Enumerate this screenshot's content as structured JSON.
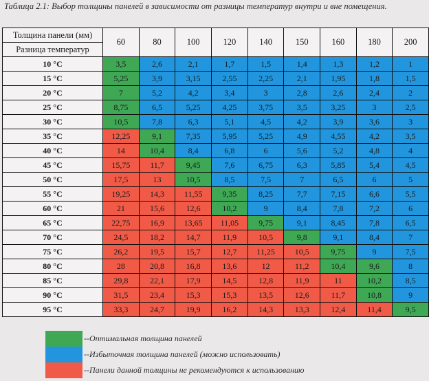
{
  "caption": "Таблица 2.1: Выбор толщины панелей в зависимости от разницы температур внутри и вне помещения.",
  "header": {
    "thickness_label": "Толщина панели (мм)",
    "diff_label": "Разница температур",
    "columns": [
      "60",
      "80",
      "100",
      "120",
      "140",
      "150",
      "160",
      "180",
      "200"
    ]
  },
  "colors": {
    "green": "#3fa855",
    "blue": "#2196de",
    "red": "#f05a47"
  },
  "rows": [
    {
      "label": "10 °C",
      "values": [
        "3,5",
        "2,6",
        "2,1",
        "1,7",
        "1,5",
        "1,4",
        "1,3",
        "1,2",
        "1"
      ],
      "colors": [
        "g",
        "b",
        "b",
        "b",
        "b",
        "b",
        "b",
        "b",
        "b"
      ]
    },
    {
      "label": "15 °C",
      "values": [
        "5,25",
        "3,9",
        "3,15",
        "2,55",
        "2,25",
        "2,1",
        "1,95",
        "1,8",
        "1,5"
      ],
      "colors": [
        "g",
        "b",
        "b",
        "b",
        "b",
        "b",
        "b",
        "b",
        "b"
      ]
    },
    {
      "label": "20 °C",
      "values": [
        "7",
        "5,2",
        "4,2",
        "3,4",
        "3",
        "2,8",
        "2,6",
        "2,4",
        "2"
      ],
      "colors": [
        "g",
        "b",
        "b",
        "b",
        "b",
        "b",
        "b",
        "b",
        "b"
      ]
    },
    {
      "label": "25 °C",
      "values": [
        "8,75",
        "6,5",
        "5,25",
        "4,25",
        "3,75",
        "3,5",
        "3,25",
        "3",
        "2,5"
      ],
      "colors": [
        "g",
        "b",
        "b",
        "b",
        "b",
        "b",
        "b",
        "b",
        "b"
      ]
    },
    {
      "label": "30 °C",
      "values": [
        "10,5",
        "7,8",
        "6,3",
        "5,1",
        "4,5",
        "4,2",
        "3,9",
        "3,6",
        "3"
      ],
      "colors": [
        "g",
        "b",
        "b",
        "b",
        "b",
        "b",
        "b",
        "b",
        "b"
      ]
    },
    {
      "label": "35 °C",
      "values": [
        "12,25",
        "9,1",
        "7,35",
        "5,95",
        "5,25",
        "4,9",
        "4,55",
        "4,2",
        "3,5"
      ],
      "colors": [
        "r",
        "g",
        "b",
        "b",
        "b",
        "b",
        "b",
        "b",
        "b"
      ]
    },
    {
      "label": "40 °C",
      "values": [
        "14",
        "10,4",
        "8,4",
        "6,8",
        "6",
        "5,6",
        "5,2",
        "4,8",
        "4"
      ],
      "colors": [
        "r",
        "g",
        "b",
        "b",
        "b",
        "b",
        "b",
        "b",
        "b"
      ]
    },
    {
      "label": "45 °C",
      "values": [
        "15,75",
        "11,7",
        "9,45",
        "7,6",
        "6,75",
        "6,3",
        "5,85",
        "5,4",
        "4,5"
      ],
      "colors": [
        "r",
        "r",
        "g",
        "b",
        "b",
        "b",
        "b",
        "b",
        "b"
      ]
    },
    {
      "label": "50 °C",
      "values": [
        "17,5",
        "13",
        "10,5",
        "8,5",
        "7,5",
        "7",
        "6,5",
        "6",
        "5"
      ],
      "colors": [
        "r",
        "r",
        "g",
        "b",
        "b",
        "b",
        "b",
        "b",
        "b"
      ]
    },
    {
      "label": "55 °C",
      "values": [
        "19,25",
        "14,3",
        "11,55",
        "9,35",
        "8,25",
        "7,7",
        "7,15",
        "6,6",
        "5,5"
      ],
      "colors": [
        "r",
        "r",
        "r",
        "g",
        "b",
        "b",
        "b",
        "b",
        "b"
      ]
    },
    {
      "label": "60 °C",
      "values": [
        "21",
        "15,6",
        "12,6",
        "10,2",
        "9",
        "8,4",
        "7,8",
        "7,2",
        "6"
      ],
      "colors": [
        "r",
        "r",
        "r",
        "g",
        "b",
        "b",
        "b",
        "b",
        "b"
      ]
    },
    {
      "label": "65 °C",
      "values": [
        "22,75",
        "16,9",
        "13,65",
        "11,05",
        "9,75",
        "9,1",
        "8,45",
        "7,8",
        "6,5"
      ],
      "colors": [
        "r",
        "r",
        "r",
        "r",
        "g",
        "b",
        "b",
        "b",
        "b"
      ]
    },
    {
      "label": "70 °C",
      "values": [
        "24,5",
        "18,2",
        "14,7",
        "11,9",
        "10,5",
        "9,8",
        "9,1",
        "8,4",
        "7"
      ],
      "colors": [
        "r",
        "r",
        "r",
        "r",
        "r",
        "g",
        "b",
        "b",
        "b"
      ]
    },
    {
      "label": "75 °C",
      "values": [
        "26,2",
        "19,5",
        "15,7",
        "12,7",
        "11,25",
        "10,5",
        "9,75",
        "9",
        "7,5"
      ],
      "colors": [
        "r",
        "r",
        "r",
        "r",
        "r",
        "r",
        "g",
        "b",
        "b"
      ]
    },
    {
      "label": "80 °C",
      "values": [
        "28",
        "20,8",
        "16,8",
        "13,6",
        "12",
        "11,2",
        "10,4",
        "9,6",
        "8"
      ],
      "colors": [
        "r",
        "r",
        "r",
        "r",
        "r",
        "r",
        "g",
        "g",
        "b"
      ]
    },
    {
      "label": "85 °C",
      "values": [
        "29,8",
        "22,1",
        "17,9",
        "14,5",
        "12,8",
        "11,9",
        "11",
        "10,2",
        "8,5"
      ],
      "colors": [
        "r",
        "r",
        "r",
        "r",
        "r",
        "r",
        "r",
        "g",
        "b"
      ]
    },
    {
      "label": "90 °C",
      "values": [
        "31,5",
        "23,4",
        "15,3",
        "15,3",
        "13,5",
        "12,6",
        "11,7",
        "10,8",
        "9"
      ],
      "colors": [
        "r",
        "r",
        "r",
        "r",
        "r",
        "r",
        "r",
        "g",
        "b"
      ]
    },
    {
      "label": "95 °C",
      "values": [
        "33,3",
        "24,7",
        "19,9",
        "16,2",
        "14,3",
        "13,3",
        "12,4",
        "11,4",
        "9,5"
      ],
      "colors": [
        "r",
        "r",
        "r",
        "r",
        "r",
        "r",
        "r",
        "r",
        "g"
      ]
    }
  ],
  "legend": [
    {
      "color": "#3fa855",
      "text": "--Оптимальная толщина панелей"
    },
    {
      "color": "#2196de",
      "text": "--Избыточная толщина панелей (можно использовать)"
    },
    {
      "color": "#f05a47",
      "text": "--Панели данной толщины не рекомендуются к использованию"
    }
  ]
}
